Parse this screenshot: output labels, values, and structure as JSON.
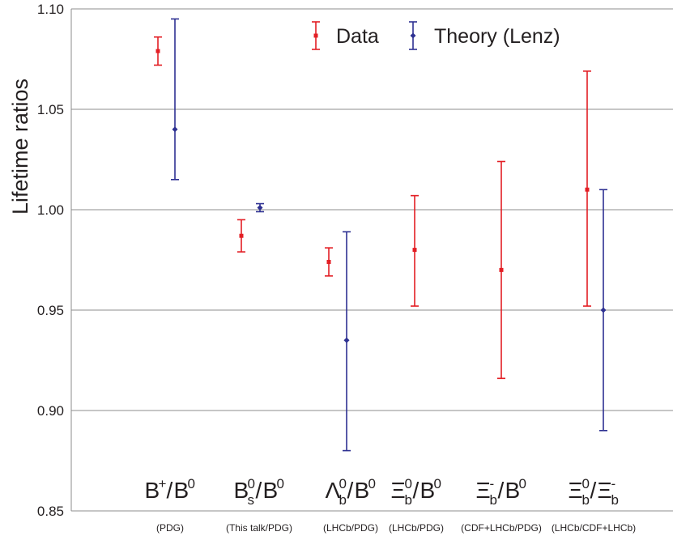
{
  "chart_data": {
    "type": "scatter",
    "title": "",
    "xlabel": "",
    "ylabel": "Lifetime ratios",
    "ylim": [
      0.85,
      1.1
    ],
    "yticks": [
      "0.85",
      "0.90",
      "0.95",
      "1.00",
      "1.05",
      "1.10"
    ],
    "grid": true,
    "legend_position": "top-center",
    "categories": [
      {
        "label": "B+/B0",
        "source": "(PDG)"
      },
      {
        "label": "Bs0/B0",
        "source": "(This talk/PDG)"
      },
      {
        "label": "Λb0/B0",
        "source": "(LHCb/PDG)"
      },
      {
        "label": "Ξb0/B0",
        "source": "(LHCb/PDG)"
      },
      {
        "label": "Ξb-/B0",
        "source": "(CDF+LHCb/PDG)"
      },
      {
        "label": "Ξb0/Ξb-",
        "source": "(LHCb/CDF+LHCb)"
      }
    ],
    "series": [
      {
        "name": "Data",
        "color": "#e31e24",
        "marker": "square",
        "points": [
          {
            "category": 0,
            "value": 1.079,
            "low": 1.072,
            "high": 1.086
          },
          {
            "category": 1,
            "value": 0.987,
            "low": 0.979,
            "high": 0.995
          },
          {
            "category": 2,
            "value": 0.974,
            "low": 0.967,
            "high": 0.981
          },
          {
            "category": 3,
            "value": 0.98,
            "low": 0.952,
            "high": 1.007
          },
          {
            "category": 4,
            "value": 0.97,
            "low": 0.916,
            "high": 1.024
          },
          {
            "category": 5,
            "value": 1.01,
            "low": 0.952,
            "high": 1.069
          }
        ]
      },
      {
        "name": "Theory (Lenz)",
        "color": "#2e3192",
        "marker": "diamond",
        "points": [
          {
            "category": 0,
            "value": 1.04,
            "low": 1.015,
            "high": 1.095
          },
          {
            "category": 1,
            "value": 1.001,
            "low": 0.999,
            "high": 1.003
          },
          {
            "category": 2,
            "value": 0.935,
            "low": 0.88,
            "high": 0.989
          },
          {
            "category": 5,
            "value": 0.95,
            "low": 0.89,
            "high": 1.01
          }
        ]
      }
    ]
  }
}
